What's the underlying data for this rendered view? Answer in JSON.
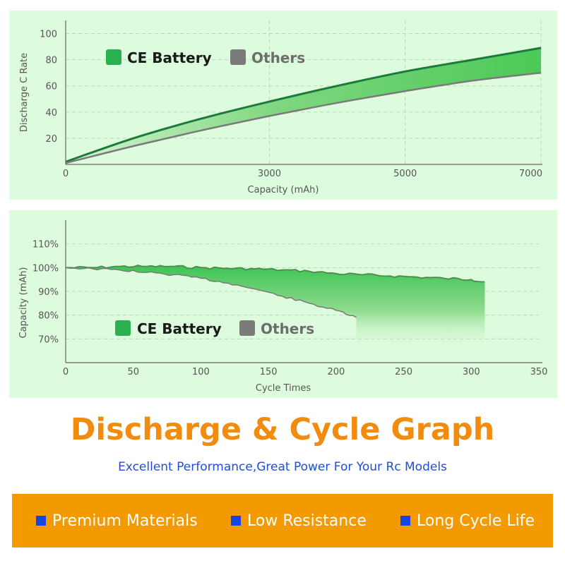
{
  "colors": {
    "ce": "#2bb04f",
    "ce_line": "#1c7a3c",
    "others": "#7a7a7a",
    "title": "#f28c0f",
    "subtitle": "#1e4fd8",
    "banner": "#f29a00",
    "bullet": "#1545e0"
  },
  "chart_data": [
    {
      "type": "line",
      "xlabel": "Capacity (mAh)",
      "ylabel": "Discharge C Rate",
      "xlim": [
        0,
        7000
      ],
      "ylim": [
        0,
        110
      ],
      "x_ticks": [
        "0",
        "3000",
        "5000",
        "7000"
      ],
      "y_ticks": [
        "20",
        "40",
        "60",
        "80",
        "100"
      ],
      "grid": true,
      "legend": "top-left",
      "legend_items": [
        "CE Battery",
        "Others"
      ],
      "series": [
        {
          "name": "CE Battery",
          "x": [
            0,
            1000,
            2000,
            3000,
            4000,
            5000,
            6000,
            7000
          ],
          "values": [
            2,
            20,
            35,
            48,
            60,
            71,
            80,
            89
          ]
        },
        {
          "name": "Others",
          "x": [
            0,
            1000,
            2000,
            3000,
            4000,
            5000,
            6000,
            7000
          ],
          "values": [
            1,
            14,
            26,
            37,
            47,
            56,
            64,
            70
          ]
        }
      ]
    },
    {
      "type": "area",
      "xlabel": "Cycle Times",
      "ylabel": "Capacity (mAh)",
      "xlim": [
        0,
        350
      ],
      "ylim": [
        60,
        120
      ],
      "x_ticks": [
        "0",
        "50",
        "100",
        "150",
        "200",
        "250",
        "300",
        "350"
      ],
      "y_ticks": [
        "70%",
        "80%",
        "90%",
        "100%",
        "110%"
      ],
      "grid": true,
      "legend": "center-left",
      "legend_items": [
        "CE Battery",
        "Others"
      ],
      "series": [
        {
          "name": "CE Battery",
          "x": [
            0,
            20,
            40,
            60,
            80,
            100,
            120,
            140,
            160,
            180,
            200,
            220,
            240,
            260,
            280,
            300,
            310
          ],
          "values": [
            100,
            100,
            100.5,
            100.5,
            100.5,
            100,
            99.7,
            99.5,
            99,
            98.5,
            97.5,
            97,
            96.5,
            96,
            95.5,
            95,
            94
          ]
        },
        {
          "name": "Others",
          "x": [
            0,
            20,
            40,
            60,
            80,
            100,
            120,
            140,
            160,
            180,
            200,
            215
          ],
          "values": [
            100,
            99.5,
            99,
            98,
            97,
            95.5,
            93.5,
            91,
            88,
            85,
            82,
            79
          ]
        }
      ]
    }
  ],
  "heading": {
    "title": "Discharge & Cycle Graph",
    "subtitle": "Excellent Performance,Great Power For Your Rc Models"
  },
  "features": [
    "Premium Materials",
    "Low Resistance",
    "Long Cycle Life"
  ]
}
